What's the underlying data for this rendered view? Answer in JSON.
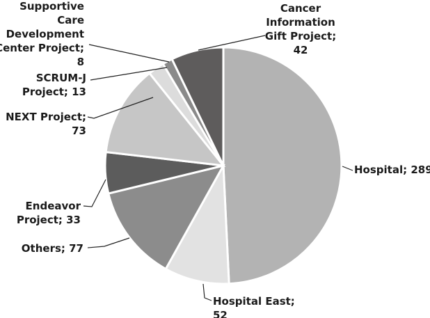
{
  "chart_data": {
    "type": "pie",
    "start_angle_deg": 0,
    "direction": "clockwise",
    "slices": [
      {
        "name": "Hospital",
        "value": 289,
        "color": "#b3b3b3",
        "label_lines": [
          "Hospital; 289"
        ]
      },
      {
        "name": "Hospital East",
        "value": 52,
        "color": "#e2e2e2",
        "label_lines": [
          "Hospital East;",
          "52"
        ]
      },
      {
        "name": "Others",
        "value": 77,
        "color": "#8c8c8c",
        "label_lines": [
          "Others; 77"
        ]
      },
      {
        "name": "Endeavor Project",
        "value": 33,
        "color": "#5c5c5c",
        "label_lines": [
          "Endeavor",
          "Project; 33"
        ]
      },
      {
        "name": "NEXT Project",
        "value": 73,
        "color": "#c6c6c6",
        "label_lines": [
          "NEXT  Project;",
          "73"
        ]
      },
      {
        "name": "SCRUM-J Project",
        "value": 13,
        "color": "#dcdcdc",
        "label_lines": [
          "SCRUM-J",
          "Project; 13"
        ]
      },
      {
        "name": "Supportive Care Development Center Project",
        "value": 8,
        "color": "#8a8a8a",
        "label_lines": [
          "Supportive",
          "Care",
          "Development",
          "Center Project;",
          "8"
        ]
      },
      {
        "name": "Cancer Information Gift Project",
        "value": 42,
        "color": "#5e5c5c",
        "label_lines": [
          "Cancer",
          "Information",
          "Gift Project;",
          "42"
        ]
      }
    ]
  }
}
